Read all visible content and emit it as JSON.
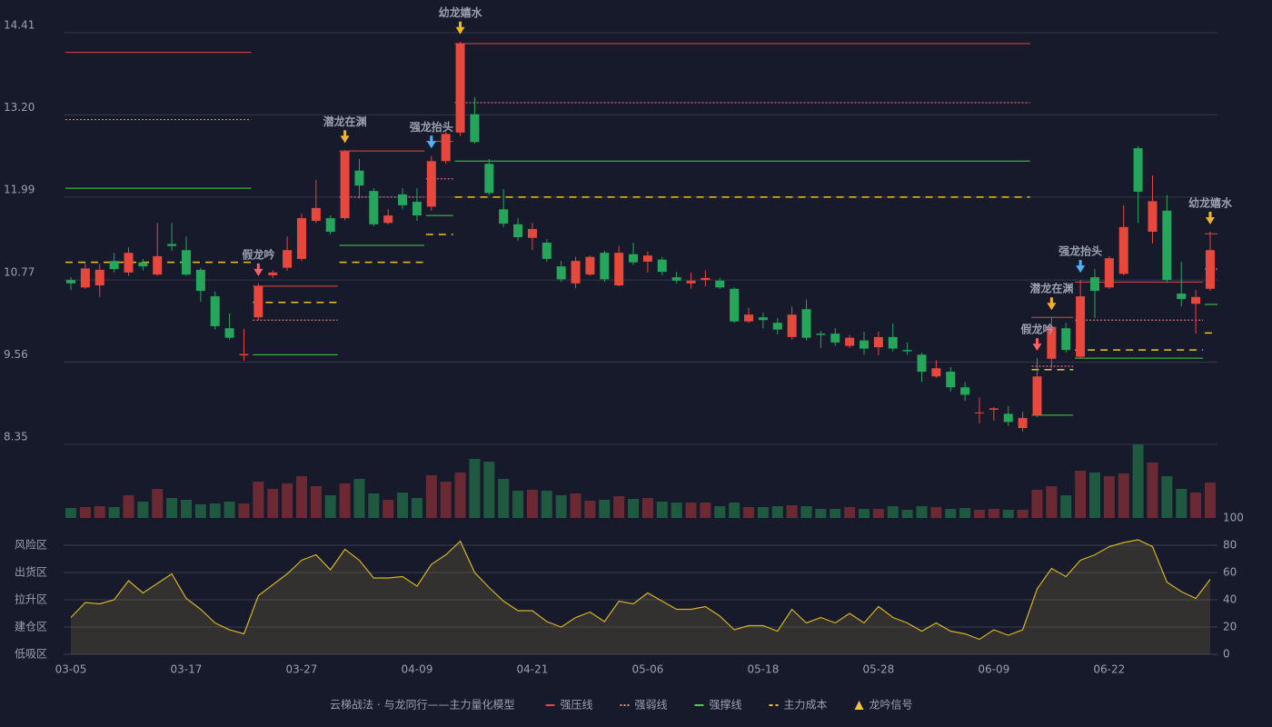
{
  "chart_data": [
    {
      "type": "candlestick",
      "open": [
        10.77,
        10.66,
        10.69,
        11.05,
        10.88,
        11.03,
        10.85,
        11.3,
        11.21,
        10.92,
        10.53,
        10.06,
        9.66,
        10.22,
        10.84,
        10.95,
        11.08,
        11.64,
        11.68,
        11.68,
        12.38,
        12.08,
        11.61,
        12.03,
        11.92,
        11.85,
        12.52,
        12.94,
        13.21,
        12.48,
        11.81,
        11.59,
        11.39,
        11.32,
        10.97,
        10.72,
        10.85,
        11.17,
        10.69,
        11.15,
        11.04,
        11.07,
        10.81,
        10.72,
        10.77,
        10.76,
        10.64,
        10.16,
        10.22,
        10.14,
        9.93,
        10.34,
        9.98,
        9.98,
        9.8,
        9.88,
        9.78,
        9.93,
        9.74,
        9.67,
        9.35,
        9.42,
        9.19,
        8.81,
        8.86,
        8.8,
        8.59,
        8.78,
        9.61,
        10.06,
        9.64,
        10.81,
        10.66,
        10.86,
        12.71,
        11.48,
        11.79,
        10.57,
        10.42,
        10.64
      ],
      "high": [
        10.81,
        11.02,
        11.01,
        11.17,
        11.25,
        11.08,
        11.61,
        11.61,
        11.41,
        10.95,
        10.6,
        10.28,
        10.05,
        10.72,
        10.91,
        11.41,
        11.75,
        12.24,
        11.72,
        12.68,
        12.55,
        12.12,
        11.81,
        12.12,
        12.12,
        12.6,
        12.95,
        14.28,
        13.46,
        12.55,
        12.11,
        11.68,
        11.61,
        11.37,
        11.05,
        11.11,
        11.13,
        11.2,
        11.27,
        11.32,
        11.19,
        11.11,
        10.89,
        10.88,
        10.91,
        10.8,
        10.66,
        10.36,
        10.29,
        10.21,
        10.38,
        10.48,
        10.02,
        10.06,
        9.96,
        10.01,
        10.01,
        10.13,
        9.85,
        9.7,
        9.59,
        9.49,
        9.27,
        9.04,
        8.9,
        8.91,
        8.83,
        9.62,
        10.22,
        10.14,
        10.77,
        10.93,
        11.12,
        11.87,
        12.74,
        12.31,
        12.02,
        11.04,
        10.62,
        11.48
      ],
      "low": [
        10.62,
        10.64,
        10.52,
        10.88,
        10.83,
        10.91,
        10.83,
        11.2,
        10.83,
        10.45,
        10.04,
        9.89,
        9.58,
        10.18,
        10.8,
        10.91,
        11.05,
        11.61,
        11.44,
        11.65,
        11.97,
        11.56,
        11.59,
        11.81,
        11.64,
        11.79,
        12.48,
        12.89,
        12.78,
        12.02,
        11.55,
        11.35,
        11.21,
        11.04,
        10.74,
        10.65,
        10.83,
        10.74,
        10.68,
        10.99,
        10.88,
        10.84,
        10.72,
        10.64,
        10.68,
        10.64,
        10.14,
        10.14,
        10.06,
        9.97,
        9.89,
        9.88,
        9.77,
        9.8,
        9.77,
        9.67,
        9.66,
        9.72,
        9.67,
        9.27,
        9.33,
        9.13,
        8.99,
        8.66,
        8.7,
        8.62,
        8.54,
        8.75,
        9.47,
        9.7,
        9.61,
        10.21,
        10.64,
        10.84,
        11.61,
        11.31,
        10.74,
        10.38,
        9.98,
        10.61
      ],
      "close": [
        10.72,
        10.94,
        10.92,
        10.93,
        11.17,
        10.97,
        11.12,
        11.27,
        10.85,
        10.61,
        10.09,
        9.92,
        9.68,
        10.68,
        10.88,
        11.21,
        11.68,
        11.83,
        11.48,
        12.66,
        12.16,
        11.59,
        11.72,
        11.87,
        11.72,
        12.52,
        12.92,
        14.25,
        12.8,
        12.05,
        11.6,
        11.4,
        11.52,
        11.08,
        10.78,
        11.05,
        11.11,
        10.78,
        11.17,
        11.03,
        11.13,
        10.89,
        10.76,
        10.76,
        10.8,
        10.66,
        10.16,
        10.26,
        10.18,
        10.04,
        10.26,
        9.92,
        9.96,
        9.85,
        9.92,
        9.76,
        9.93,
        9.76,
        9.72,
        9.42,
        9.47,
        9.19,
        9.08,
        8.82,
        8.88,
        8.68,
        8.74,
        9.35,
        10.08,
        9.74,
        10.53,
        10.61,
        11.09,
        11.55,
        12.07,
        11.93,
        10.77,
        10.49,
        10.52,
        11.21
      ],
      "up_color": "#e8473d",
      "down_color": "#26a65b",
      "ylim": [
        8.35,
        14.41
      ],
      "yticks": [
        14.41,
        {
          "value": 13.2,
          "label": "13.20"
        },
        11.99,
        10.77,
        9.56,
        8.35
      ],
      "grid": true,
      "legend_title": "云梯战法 · 与龙同行——主力量化模型",
      "levels": [
        {
          "name": "强压线",
          "color": "#e0484a",
          "style": "solid",
          "segments": [
            {
              "start": 0,
              "end": 12,
              "value": 14.12
            },
            {
              "start": 13,
              "end": 18,
              "value": 10.68
            },
            {
              "start": 19,
              "end": 24,
              "value": 12.67
            },
            {
              "start": 25,
              "end": 26,
              "value": 12.81
            },
            {
              "start": 27,
              "end": 66,
              "value": 14.25
            },
            {
              "start": 67,
              "end": 69,
              "value": 10.22
            },
            {
              "start": 70,
              "end": 78,
              "value": 10.74
            },
            {
              "start": 79,
              "end": 79,
              "value": 11.45
            }
          ]
        },
        {
          "name": "强弱线",
          "color": "#f08a8a",
          "style": "dotted",
          "segments": [
            {
              "start": 0,
              "end": 12,
              "value": 13.13
            },
            {
              "start": 13,
              "end": 18,
              "value": 10.18
            },
            {
              "start": 19,
              "end": 24,
              "value": 11.99
            },
            {
              "start": 25,
              "end": 26,
              "value": 12.26
            },
            {
              "start": 27,
              "end": 66,
              "value": 13.38
            },
            {
              "start": 67,
              "end": 69,
              "value": 9.5
            },
            {
              "start": 70,
              "end": 78,
              "value": 10.18
            },
            {
              "start": 79,
              "end": 79,
              "value": 10.93
            }
          ]
        },
        {
          "name": "强撑线",
          "color": "#4ccc4c",
          "style": "solid",
          "segments": [
            {
              "start": 0,
              "end": 12,
              "value": 12.12
            },
            {
              "start": 13,
              "end": 18,
              "value": 9.67
            },
            {
              "start": 19,
              "end": 24,
              "value": 11.28
            },
            {
              "start": 25,
              "end": 26,
              "value": 11.72
            },
            {
              "start": 27,
              "end": 66,
              "value": 12.52
            },
            {
              "start": 67,
              "end": 69,
              "value": 8.78
            },
            {
              "start": 70,
              "end": 78,
              "value": 9.62
            },
            {
              "start": 79,
              "end": 79,
              "value": 10.41
            }
          ]
        },
        {
          "name": "主力成本",
          "color": "#f0c020",
          "style": "dashed",
          "segments": [
            {
              "start": 0,
              "end": 12,
              "value": 11.03
            },
            {
              "start": 13,
              "end": 18,
              "value": 10.44
            },
            {
              "start": 19,
              "end": 24,
              "value": 11.03
            },
            {
              "start": 25,
              "end": 26,
              "value": 11.44
            },
            {
              "start": 27,
              "end": 66,
              "value": 11.99
            },
            {
              "start": 67,
              "end": 69,
              "value": 9.45
            },
            {
              "start": 70,
              "end": 78,
              "value": 9.74
            },
            {
              "start": 79,
              "end": 79,
              "value": 9.99
            }
          ]
        }
      ],
      "signal_legend": "龙吟信号",
      "signal_legend_color": "#f0c040",
      "signals": [
        {
          "label": "假龙吟",
          "index": 13,
          "color": "#ff6060"
        },
        {
          "label": "潜龙在渊",
          "index": 19,
          "color": "#f0b429"
        },
        {
          "label": "强龙抬头",
          "index": 25,
          "color": "#4fb3ff"
        },
        {
          "label": "幼龙嬉水",
          "index": 27,
          "color": "#f0b429"
        },
        {
          "label": "假龙吟",
          "index": 67,
          "color": "#ff6060"
        },
        {
          "label": "潜龙在渊",
          "index": 68,
          "color": "#f0b429"
        },
        {
          "label": "强龙抬头",
          "index": 70,
          "color": "#4fb3ff"
        },
        {
          "label": "幼龙嬉水",
          "index": 79,
          "color": "#f0b429"
        }
      ]
    },
    {
      "type": "bar",
      "values": [
        11,
        12,
        13,
        12,
        25,
        18,
        32,
        22,
        20,
        15,
        16,
        18,
        16,
        40,
        32,
        38,
        46,
        35,
        25,
        38,
        43,
        27,
        20,
        28,
        22,
        47,
        40,
        50,
        65,
        62,
        43,
        30,
        31,
        30,
        25,
        27,
        19,
        20,
        24,
        21,
        22,
        18,
        17,
        17,
        17,
        13,
        17,
        12,
        12,
        13,
        14,
        13,
        10,
        10,
        12,
        10,
        10,
        13,
        9,
        13,
        12,
        10,
        11,
        9,
        10,
        9,
        9,
        31,
        35,
        25,
        52,
        50,
        46,
        49,
        81,
        61,
        46,
        32,
        28,
        39
      ],
      "up_color": "#6b2a33",
      "down_color": "#1f5a40"
    },
    {
      "type": "line",
      "categories": [
        "03-05",
        null,
        null,
        null,
        null,
        null,
        null,
        null,
        "03-17",
        null,
        null,
        null,
        null,
        null,
        null,
        null,
        "03-27",
        null,
        null,
        null,
        null,
        null,
        null,
        null,
        "04-09",
        null,
        null,
        null,
        null,
        null,
        null,
        null,
        "04-21",
        null,
        null,
        null,
        null,
        null,
        null,
        null,
        "05-06",
        null,
        null,
        null,
        null,
        null,
        null,
        null,
        "05-18",
        null,
        null,
        null,
        null,
        null,
        null,
        null,
        "05-28",
        null,
        null,
        null,
        null,
        null,
        null,
        null,
        "06-09",
        null,
        null,
        null,
        null,
        null,
        null,
        null,
        "06-22",
        null,
        null,
        null,
        null,
        null,
        null,
        null
      ],
      "values": [
        27,
        38,
        37,
        40,
        54,
        45,
        52,
        59,
        41,
        33,
        23,
        18,
        15,
        43,
        51,
        59,
        69,
        73,
        62,
        77,
        69,
        56,
        56,
        57,
        50,
        66,
        73,
        83,
        60,
        49,
        39,
        32,
        32,
        24,
        20,
        27,
        31,
        24,
        39,
        37,
        45,
        39,
        33,
        33,
        35,
        28,
        18,
        21,
        21,
        17,
        33,
        23,
        27,
        23,
        30,
        23,
        35,
        27,
        23,
        17,
        23,
        17,
        15,
        11,
        18,
        14,
        18,
        48,
        63,
        57,
        69,
        73,
        79,
        82,
        84,
        79,
        53,
        46,
        41,
        55
      ],
      "color": "#d4b323",
      "ylim": [
        0,
        100
      ],
      "yticks": [
        0,
        20,
        40,
        60,
        80,
        100
      ],
      "ytick_colors": [
        "#ff4d4d",
        "#ff8a4d",
        "#4f9dff",
        "#e04de0",
        "#f0a030",
        "#4ccc4c"
      ],
      "zones": [
        {
          "label": "低吸区",
          "value": 0,
          "color": "#ff4d4d"
        },
        {
          "label": "建仓区",
          "value": 20,
          "color": "#ff6b6b"
        },
        {
          "label": "拉升区",
          "value": 40,
          "color": "#4f9dff"
        },
        {
          "label": "出货区",
          "value": 60,
          "color": "#e04de0"
        },
        {
          "label": "风险区",
          "value": 80,
          "color": "#f0a030"
        }
      ]
    }
  ]
}
